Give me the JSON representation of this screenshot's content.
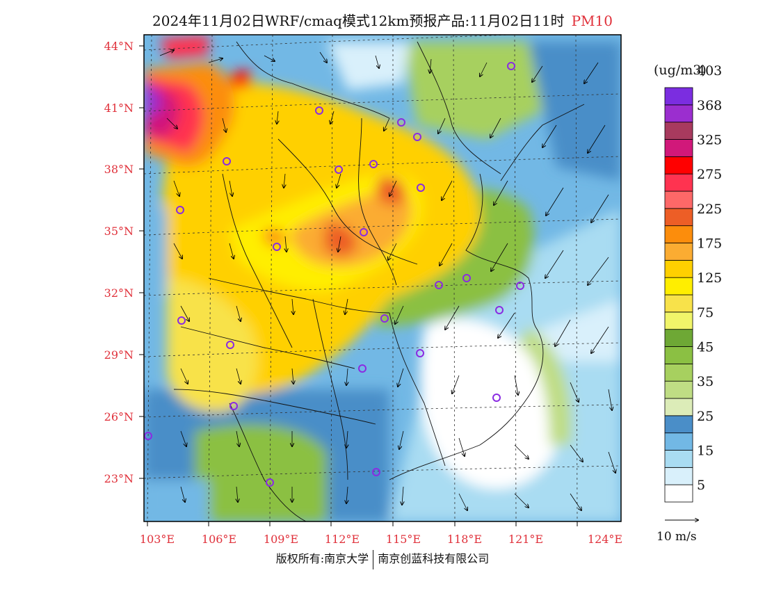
{
  "title": {
    "main": "2024年11月02日WRF/cmaq模式12km预报产品:11月02日11时",
    "pollutant": "PM10"
  },
  "colorbar": {
    "unit": "(ug/m3)",
    "bins": [
      {
        "color": "#ffffff"
      },
      {
        "color": "#d9f0fb"
      },
      {
        "color": "#a9dcf2"
      },
      {
        "color": "#72b8e5"
      },
      {
        "color": "#4a8ec8"
      },
      {
        "color": "#dcecb8"
      },
      {
        "color": "#bfdd84"
      },
      {
        "color": "#a7d05f"
      },
      {
        "color": "#8bc043"
      },
      {
        "color": "#6ea835"
      },
      {
        "color": "#f1f56a"
      },
      {
        "color": "#f8e24a"
      },
      {
        "color": "#ffee00"
      },
      {
        "color": "#ffd000"
      },
      {
        "color": "#fbac32"
      },
      {
        "color": "#fc8d0c"
      },
      {
        "color": "#ed5e26"
      },
      {
        "color": "#fd6868"
      },
      {
        "color": "#ff3350"
      },
      {
        "color": "#ff0000"
      },
      {
        "color": "#d1187a"
      },
      {
        "color": "#a83a5e"
      },
      {
        "color": "#9b2ecf"
      },
      {
        "color": "#7b2de0"
      }
    ],
    "labels": [
      "5",
      "15",
      "25",
      "35",
      "45",
      "75",
      "125",
      "175",
      "225",
      "275",
      "325",
      "368",
      "403"
    ]
  },
  "axes": {
    "lat_labels": [
      "44°N",
      "41°N",
      "38°N",
      "35°N",
      "32°N",
      "29°N",
      "26°N",
      "23°N"
    ],
    "lon_labels": [
      "103°E",
      "106°E",
      "109°E",
      "112°E",
      "115°E",
      "118°E",
      "121°E",
      "124°E"
    ]
  },
  "wind_reference": "10 m/s",
  "copyright": {
    "left": "版权所有:南京大学",
    "right": "南京创蓝科技有限公司"
  }
}
